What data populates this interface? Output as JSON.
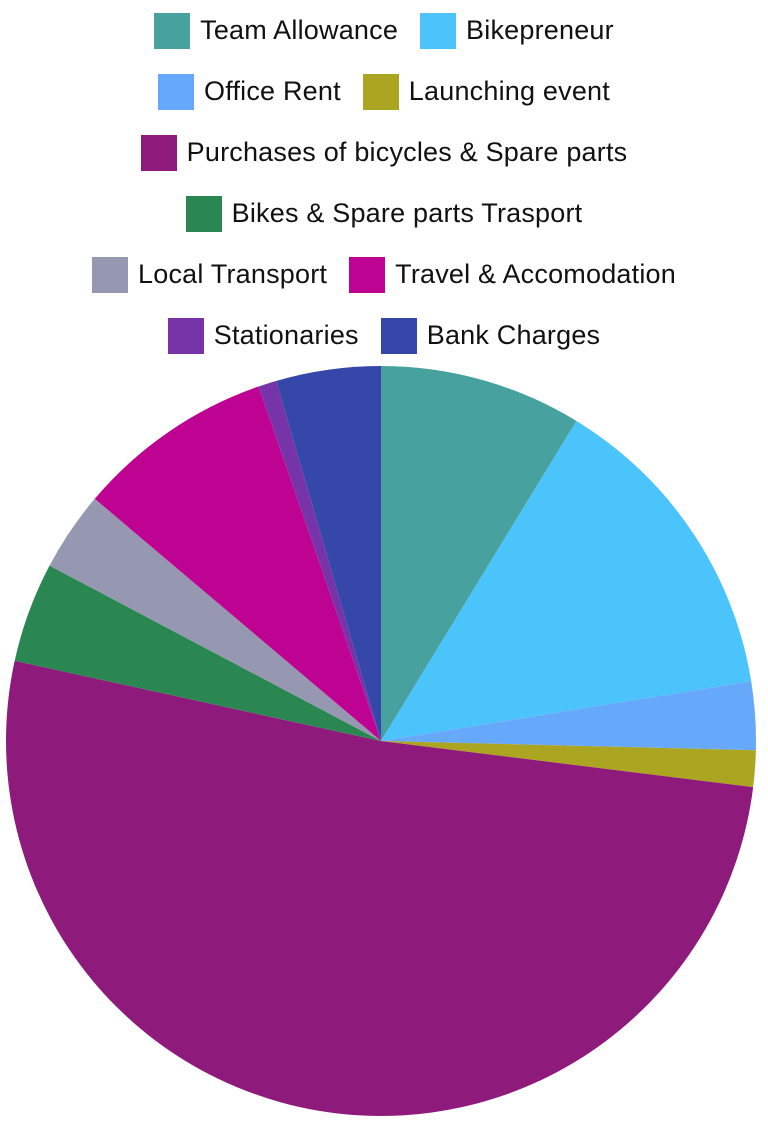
{
  "chart_data": {
    "type": "pie",
    "title": "",
    "start_angle_deg": 0,
    "direction": "clockwise",
    "legend_placement": "top",
    "legend_rows": [
      [
        0,
        1
      ],
      [
        2,
        3
      ],
      [
        4
      ],
      [
        5
      ],
      [
        6,
        7
      ],
      [
        8,
        9
      ]
    ],
    "slices": [
      {
        "label": "Team Allowance",
        "value": 8.9,
        "color": "#47A29F"
      },
      {
        "label": "Bikepreneur",
        "value": 14.0,
        "color": "#4BC3FB"
      },
      {
        "label": "Office Rent",
        "value": 3.0,
        "color": "#66A9FB"
      },
      {
        "label": "Launching event",
        "value": 1.6,
        "color": "#ACA521"
      },
      {
        "label": "Purchases of bicycles & Spare parts",
        "value": 52.5,
        "color": "#8E1B7C"
      },
      {
        "label": "Bikes & Spare parts Trasport",
        "value": 4.4,
        "color": "#2A8751"
      },
      {
        "label": "Local Transport",
        "value": 3.5,
        "color": "#9598B0"
      },
      {
        "label": "Travel & Accomodation",
        "value": 8.7,
        "color": "#BE0392"
      },
      {
        "label": "Stationaries",
        "value": 0.8,
        "color": "#7734A9"
      },
      {
        "label": "Bank Charges",
        "value": 4.6,
        "color": "#3547A8"
      }
    ]
  }
}
